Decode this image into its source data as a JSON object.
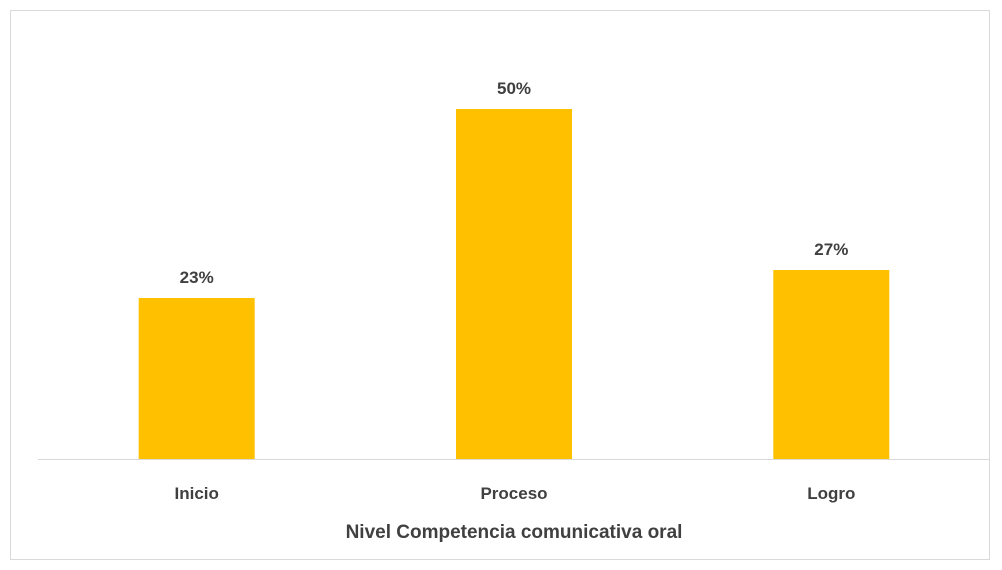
{
  "chart_data": {
    "type": "bar",
    "categories": [
      "Inicio",
      "Proceso",
      "Logro"
    ],
    "values": [
      23,
      50,
      27
    ],
    "data_labels": [
      "23%",
      "50%",
      "27%"
    ],
    "unit": "%",
    "title": "",
    "xlabel": "Nivel Competencia comunicativa oral",
    "ylabel": "",
    "ylim": [
      0,
      55
    ],
    "grid": false,
    "legend": "none",
    "bar_color": "#FFC000",
    "axis_color": "#d9d9d9",
    "text_color": "#404040"
  }
}
